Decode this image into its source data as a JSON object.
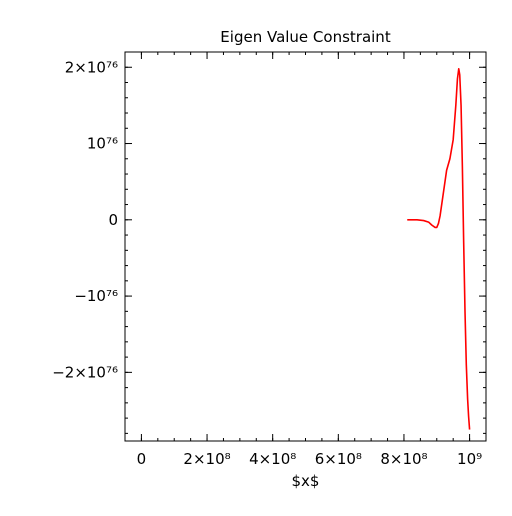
{
  "chart_data": {
    "type": "line",
    "title": "Eigen Value Constraint",
    "xlabel": "$x$",
    "ylabel": "",
    "xlim": [
      -50000000,
      1050000000
    ],
    "ylim": [
      -2.9e+76,
      2.2e+76
    ],
    "grid": false,
    "legend": "none",
    "x_ticks": [
      {
        "value": 0,
        "label": "0"
      },
      {
        "value": 200000000,
        "label": "2×10⁸"
      },
      {
        "value": 400000000,
        "label": "4×10⁸"
      },
      {
        "value": 600000000,
        "label": "6×10⁸"
      },
      {
        "value": 800000000,
        "label": "8×10⁸"
      },
      {
        "value": 1000000000,
        "label": "10⁹"
      }
    ],
    "y_ticks": [
      {
        "value": 2e+76,
        "label": "2×10⁷⁶"
      },
      {
        "value": 1e+76,
        "label": "10⁷⁶"
      },
      {
        "value": 0,
        "label": "0"
      },
      {
        "value": -1e+76,
        "label": "−10⁷⁶"
      },
      {
        "value": -2e+76,
        "label": "−2×10⁷⁶"
      }
    ],
    "series": [
      {
        "color": "#ff0000",
        "x": [
          810000000,
          840000000,
          860000000,
          875000000,
          885000000,
          895000000,
          900000000,
          905000000,
          910000000,
          920000000,
          930000000,
          940000000,
          950000000,
          958000000,
          963000000,
          967000000,
          970000000,
          974000000,
          978000000,
          982000000,
          986000000,
          990000000,
          994000000,
          997000000,
          1000000000
        ],
        "y": [
          0,
          0,
          -1e+74,
          -3e+74,
          -7e+74,
          -1e+75,
          -1e+75,
          -5e+74,
          5e+74,
          3.5e+75,
          6.5e+75,
          8e+75,
          1.05e+76,
          1.5e+76,
          1.85e+76,
          1.98e+76,
          1.9e+76,
          1.5e+76,
          7e+75,
          -3e+75,
          -1.2e+76,
          -1.9e+76,
          -2.35e+76,
          -2.58e+76,
          -2.75e+76
        ]
      }
    ]
  }
}
